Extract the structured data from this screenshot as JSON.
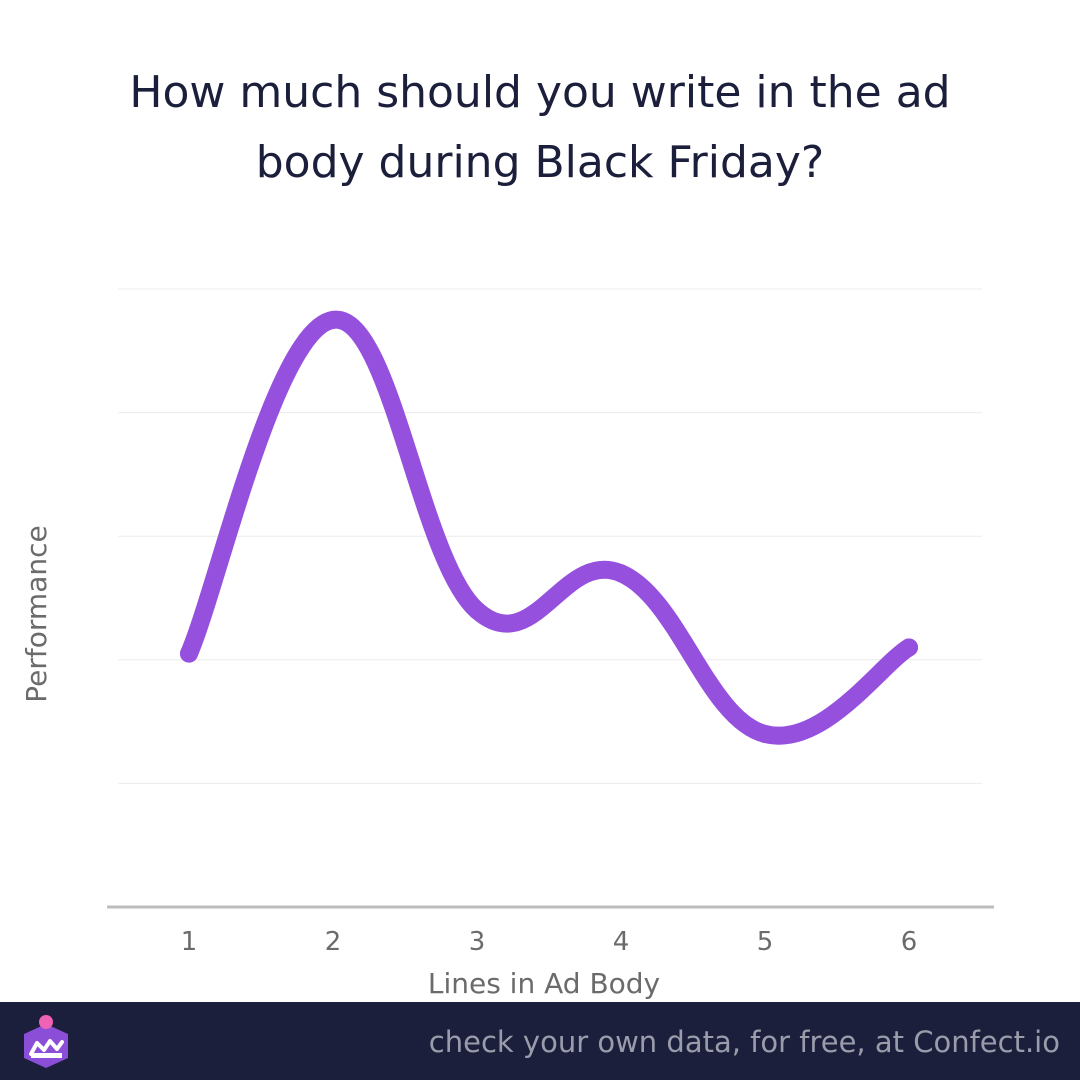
{
  "title_lines": [
    "How much should you write in the ad",
    "body during Black Friday?"
  ],
  "footer": {
    "text": "check your own data, for free, at Confect.io",
    "logo_icon": "confect-logo-icon"
  },
  "colors": {
    "line": "#9650de",
    "title": "#1c1f3b",
    "footer_bg": "#1c1f3b",
    "footer_text": "#9a9cab",
    "grid": "#ececec",
    "axis": "#bdbdbd",
    "tick_text": "#6b6b6b"
  },
  "chart_data": {
    "type": "line",
    "x": [
      1,
      2,
      3,
      4,
      5,
      6
    ],
    "categories": [
      "1",
      "2",
      "3",
      "4",
      "5",
      "6"
    ],
    "values": [
      41,
      95,
      48,
      54,
      28,
      42
    ],
    "xlabel": "Lines in Ad Body",
    "ylabel": "Performance",
    "ylim": [
      0,
      100
    ],
    "grid": true,
    "smooth": true,
    "y_tick_labels_shown": false
  }
}
